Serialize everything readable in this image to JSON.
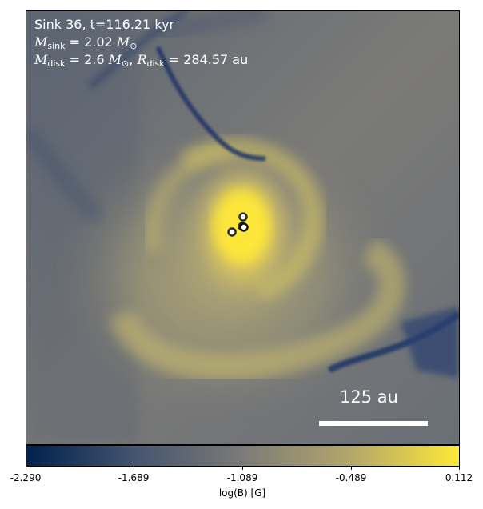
{
  "annotation": {
    "line1": "Sink 36, t=116.21 kyr",
    "msink_value": "2.02",
    "mdisk_value": "2.6",
    "rdisk_value": "284.57",
    "rdisk_unit": "au"
  },
  "scale_bar": {
    "label": "125 au"
  },
  "colorbar": {
    "label": "log(B) [G]",
    "tick_labels": [
      "-2.290",
      "-1.689",
      "-1.089",
      "-0.489",
      "0.112"
    ],
    "range": [
      -2.29,
      0.112
    ],
    "colors": {
      "low": "#00224e",
      "mid": "#7c7b78",
      "high": "#fee838"
    }
  },
  "sinks": {
    "count": 4,
    "marker_color": "#222222",
    "marker_fill": "#ffffff"
  }
}
